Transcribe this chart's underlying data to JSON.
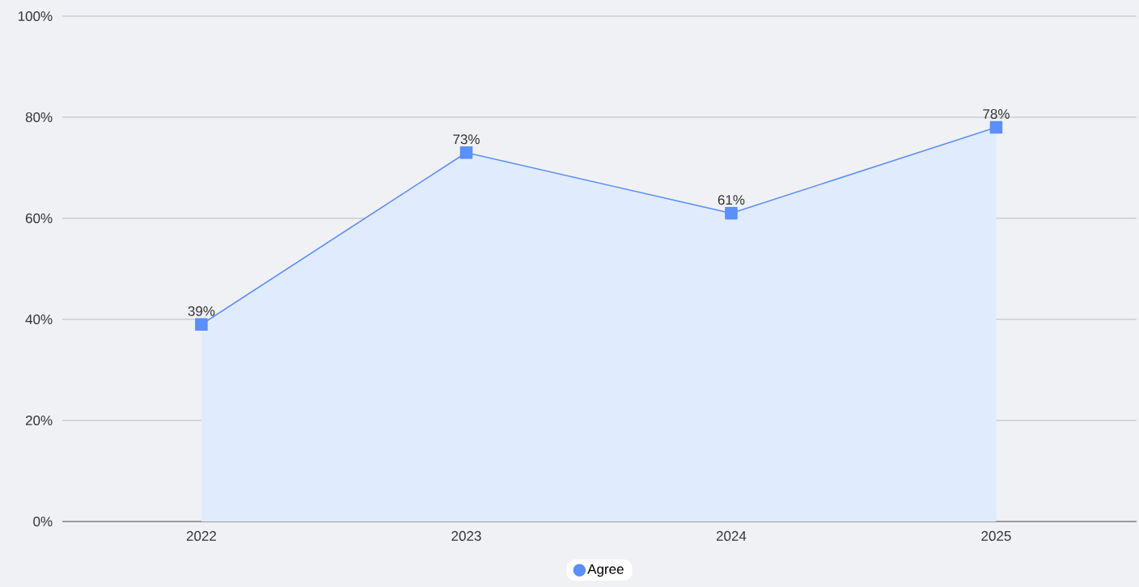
{
  "chart_data": {
    "type": "area",
    "categories": [
      "2022",
      "2023",
      "2024",
      "2025"
    ],
    "series": [
      {
        "name": "Agree",
        "color": "#5b8ff9",
        "values": [
          39,
          73,
          61,
          78
        ],
        "value_labels": [
          "39%",
          "73%",
          "61%",
          "78%"
        ]
      }
    ],
    "ylim": [
      0,
      100
    ],
    "yticks": [
      {
        "value": 0,
        "label": "0%"
      },
      {
        "value": 20,
        "label": "20%"
      },
      {
        "value": 40,
        "label": "40%"
      },
      {
        "value": 60,
        "label": "60%"
      },
      {
        "value": 80,
        "label": "80%"
      },
      {
        "value": 100,
        "label": "100%"
      }
    ],
    "grid": "y",
    "legend": "bottom",
    "marker": "square",
    "line_style": "solid"
  }
}
